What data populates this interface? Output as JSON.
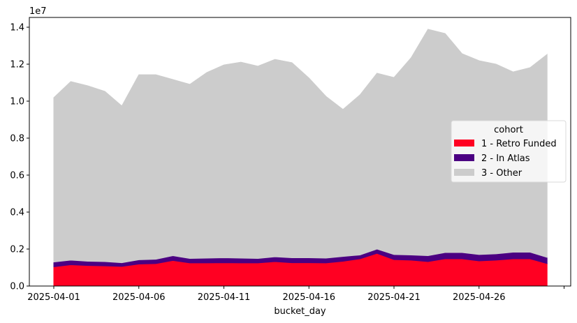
{
  "chart_data": {
    "type": "area",
    "stacked": true,
    "title": "",
    "xlabel": "bucket_day",
    "ylabel": "",
    "y_scale_label": "1e7",
    "ylim": [
      0,
      14500000
    ],
    "yticks": [
      0,
      2000000,
      4000000,
      6000000,
      8000000,
      10000000,
      12000000,
      14000000
    ],
    "ytick_labels": [
      "0.0",
      "0.2",
      "0.4",
      "0.6",
      "0.8",
      "1.0",
      "1.2",
      "1.4"
    ],
    "xtick_labels": [
      "2025-04-01",
      "2025-04-06",
      "2025-04-11",
      "2025-04-16",
      "2025-04-21",
      "2025-04-26",
      ""
    ],
    "x": [
      "2025-04-01",
      "2025-04-02",
      "2025-04-03",
      "2025-04-04",
      "2025-04-05",
      "2025-04-06",
      "2025-04-07",
      "2025-04-08",
      "2025-04-09",
      "2025-04-10",
      "2025-04-11",
      "2025-04-12",
      "2025-04-13",
      "2025-04-14",
      "2025-04-15",
      "2025-04-16",
      "2025-04-17",
      "2025-04-18",
      "2025-04-19",
      "2025-04-20",
      "2025-04-21",
      "2025-04-22",
      "2025-04-23",
      "2025-04-24",
      "2025-04-25",
      "2025-04-26",
      "2025-04-27",
      "2025-04-28",
      "2025-04-29",
      "2025-04-30"
    ],
    "grid": false,
    "legend": {
      "title": "cohort",
      "position": "center right"
    },
    "series": [
      {
        "name": "1 - Retro Funded",
        "color": "#ff0022",
        "values": [
          1040000,
          1150000,
          1110000,
          1090000,
          1060000,
          1190000,
          1210000,
          1380000,
          1250000,
          1250000,
          1260000,
          1250000,
          1250000,
          1320000,
          1260000,
          1260000,
          1250000,
          1340000,
          1470000,
          1770000,
          1430000,
          1400000,
          1320000,
          1470000,
          1470000,
          1360000,
          1400000,
          1470000,
          1470000,
          1210000
        ]
      },
      {
        "name": "2 - In Atlas",
        "color": "#4b0082",
        "values": [
          260000,
          250000,
          230000,
          230000,
          200000,
          230000,
          240000,
          260000,
          240000,
          260000,
          270000,
          260000,
          240000,
          260000,
          270000,
          270000,
          260000,
          260000,
          210000,
          230000,
          270000,
          280000,
          320000,
          340000,
          340000,
          340000,
          340000,
          360000,
          360000,
          340000
        ]
      },
      {
        "name": "3 - Other",
        "color": "#cccccc",
        "values": [
          8890000,
          9660000,
          9490000,
          9210000,
          8480000,
          10010000,
          9980000,
          9530000,
          9420000,
          10040000,
          10430000,
          10600000,
          10400000,
          10680000,
          10550000,
          9720000,
          8750000,
          7950000,
          8660000,
          9510000,
          9580000,
          10660000,
          12250000,
          11850000,
          10760000,
          10490000,
          10260000,
          9750000,
          9980000,
          10980000
        ]
      }
    ]
  }
}
